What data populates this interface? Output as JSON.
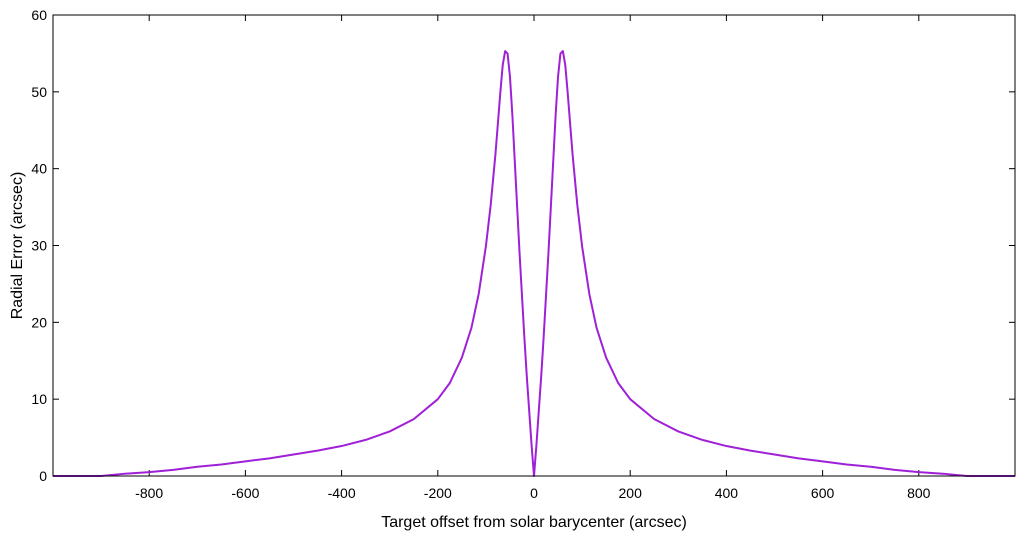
{
  "chart_data": {
    "type": "line",
    "title": "",
    "xlabel": "Target offset from solar barycenter (arcsec)",
    "ylabel": "Radial Error (arcsec)",
    "xlim": [
      -1000,
      1000
    ],
    "ylim": [
      0,
      60
    ],
    "xticks": [
      -800,
      -600,
      -400,
      -200,
      0,
      200,
      400,
      600,
      800
    ],
    "yticks": [
      0,
      10,
      20,
      30,
      40,
      50,
      60
    ],
    "grid": false,
    "legend": "none",
    "series": [
      {
        "color": "#a020d8",
        "x": [
          -1000,
          -950,
          -900,
          -850,
          -800,
          -750,
          -700,
          -650,
          -600,
          -550,
          -500,
          -450,
          -400,
          -350,
          -300,
          -250,
          -200,
          -175,
          -150,
          -130,
          -115,
          -100,
          -90,
          -80,
          -70,
          -65,
          -60,
          -55,
          -50,
          -45,
          -40,
          -35,
          -30,
          -25,
          -20,
          -15,
          -10,
          -5,
          0,
          5,
          10,
          15,
          20,
          25,
          30,
          35,
          40,
          45,
          50,
          55,
          60,
          65,
          70,
          80,
          90,
          100,
          115,
          130,
          150,
          175,
          200,
          250,
          300,
          350,
          400,
          450,
          500,
          550,
          600,
          650,
          700,
          750,
          800,
          850,
          900,
          950,
          1000
        ],
        "y": [
          0,
          0,
          0,
          0.3,
          0.5,
          0.8,
          1.2,
          1.5,
          1.9,
          2.3,
          2.8,
          3.3,
          3.9,
          4.7,
          5.8,
          7.4,
          10.0,
          12.1,
          15.4,
          19.3,
          23.7,
          29.9,
          35.3,
          42.0,
          49.9,
          53.5,
          55.3,
          55.0,
          52.0,
          47.0,
          41.0,
          35.0,
          29.0,
          23.5,
          18.0,
          13.0,
          8.5,
          4.0,
          0,
          4.0,
          8.5,
          13.0,
          18.0,
          23.5,
          29.0,
          35.0,
          41.0,
          47.0,
          52.0,
          55.0,
          55.3,
          53.5,
          49.9,
          42.0,
          35.3,
          29.9,
          23.7,
          19.3,
          15.4,
          12.1,
          10.0,
          7.4,
          5.8,
          4.7,
          3.9,
          3.3,
          2.8,
          2.3,
          1.9,
          1.5,
          1.2,
          0.8,
          0.5,
          0.3,
          0,
          0,
          0
        ]
      }
    ]
  }
}
